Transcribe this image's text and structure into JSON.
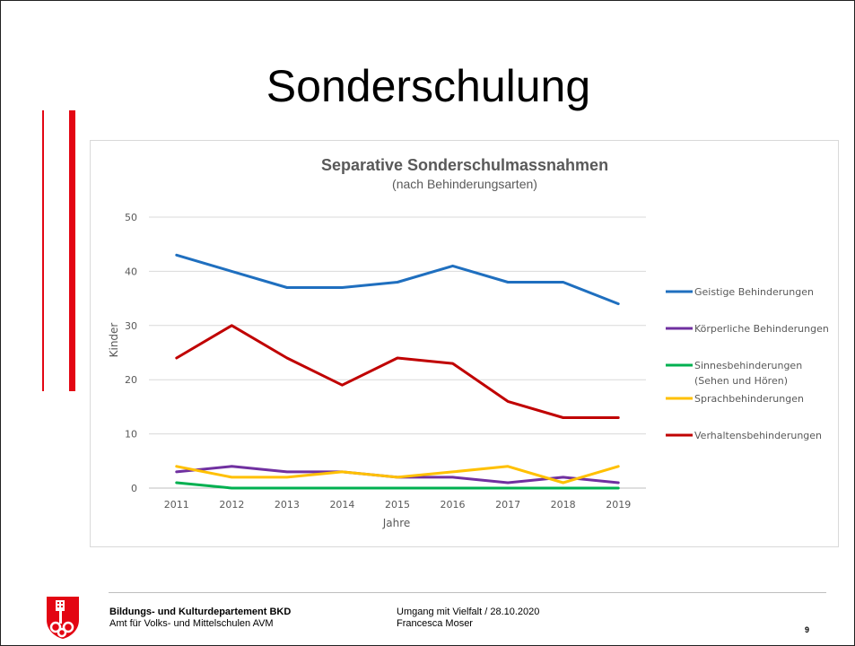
{
  "slide": {
    "title": "Sonderschulung",
    "page_number": "9",
    "footer": {
      "department": "Bildungs- und Kulturdepartement BKD",
      "office": "Amt für Volks- und Mittelschulen AVM",
      "event": "Umgang mit Vielfalt / 28.10.2020",
      "author": "Francesca Moser"
    },
    "colors": {
      "accent_red": "#e30613"
    }
  },
  "chart_data": {
    "type": "line",
    "title": "Separative Sonderschulmassnahmen",
    "subtitle": "(nach Behinderungsarten)",
    "xlabel": "Jahre",
    "ylabel": "Kinder",
    "categories": [
      "2011",
      "2012",
      "2013",
      "2014",
      "2015",
      "2016",
      "2017",
      "2018",
      "2019"
    ],
    "ylim": [
      0,
      50
    ],
    "yticks": [
      "0",
      "10",
      "20",
      "30",
      "40",
      "50"
    ],
    "grid": true,
    "legend_position": "right",
    "series": [
      {
        "name": "Geistige Behinderungen",
        "color": "#1f6fbf",
        "values": [
          43,
          40,
          37,
          37,
          38,
          41,
          38,
          38,
          34
        ]
      },
      {
        "name": "Körperliche Behinderungen",
        "color": "#7030a0",
        "values": [
          3,
          4,
          3,
          3,
          2,
          2,
          1,
          2,
          1
        ]
      },
      {
        "name": "Sinnesbehinderungen (Sehen und Hören)",
        "name_lines": [
          "Sinnesbehinderungen",
          "(Sehen und Hören)"
        ],
        "color": "#00b050",
        "values": [
          1,
          0,
          0,
          0,
          0,
          0,
          0,
          0,
          0
        ]
      },
      {
        "name": "Sprachbehinderungen",
        "color": "#ffc000",
        "values": [
          4,
          2,
          2,
          3,
          2,
          3,
          4,
          1,
          4
        ]
      },
      {
        "name": "Verhaltensbehinderungen",
        "color": "#c00000",
        "values": [
          24,
          30,
          24,
          19,
          24,
          23,
          16,
          13,
          13
        ]
      }
    ]
  }
}
